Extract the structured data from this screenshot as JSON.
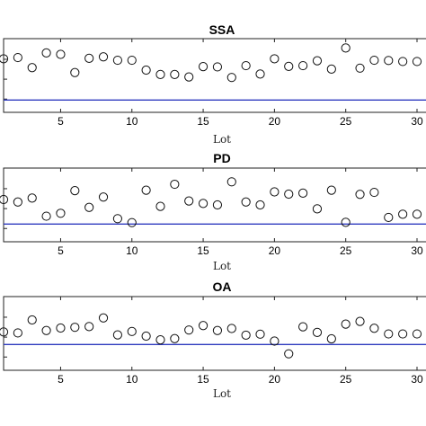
{
  "chart_data": [
    {
      "type": "scatter",
      "title": "SSA",
      "xlabel": "Lot",
      "ylabel": "",
      "xlim": [
        1,
        30
      ],
      "ylim": [
        0,
        3
      ],
      "xticks": [
        5,
        10,
        15,
        20,
        25,
        30
      ],
      "xtick_labels": [
        "5",
        "10",
        "15",
        "20",
        "25",
        "30"
      ],
      "grid": false,
      "reference_line": {
        "y": 0.5,
        "color": "#2f3bbf"
      },
      "x": [
        1,
        2,
        3,
        4,
        5,
        6,
        7,
        8,
        9,
        10,
        11,
        12,
        13,
        14,
        15,
        16,
        17,
        18,
        19,
        20,
        21,
        22,
        23,
        24,
        25,
        26,
        27,
        28,
        29,
        30
      ],
      "y": [
        2.18,
        2.23,
        1.82,
        2.42,
        2.36,
        1.62,
        2.2,
        2.26,
        2.12,
        2.12,
        1.72,
        1.54,
        1.54,
        1.44,
        1.86,
        1.85,
        1.42,
        1.9,
        1.56,
        2.18,
        1.87,
        1.9,
        2.1,
        1.76,
        2.62,
        1.8,
        2.12,
        2.11,
        2.07,
        2.07
      ]
    },
    {
      "type": "scatter",
      "title": "PD",
      "xlabel": "Lot",
      "ylabel": "",
      "xlim": [
        1,
        30
      ],
      "ylim": [
        0,
        3
      ],
      "xticks": [
        5,
        10,
        15,
        20,
        25,
        30
      ],
      "xtick_labels": [
        "5",
        "10",
        "15",
        "20",
        "25",
        "30"
      ],
      "grid": false,
      "reference_line": {
        "y": 0.72,
        "color": "#2f3bbf"
      },
      "x": [
        1,
        2,
        3,
        4,
        5,
        6,
        7,
        8,
        9,
        10,
        11,
        12,
        13,
        14,
        15,
        16,
        17,
        18,
        19,
        20,
        21,
        22,
        23,
        24,
        25,
        26,
        27,
        28,
        29,
        30
      ],
      "y": [
        1.72,
        1.62,
        1.78,
        1.04,
        1.16,
        2.08,
        1.4,
        1.82,
        0.94,
        0.78,
        2.1,
        1.44,
        2.34,
        1.66,
        1.56,
        1.5,
        2.44,
        1.62,
        1.5,
        2.03,
        1.94,
        1.98,
        1.34,
        2.1,
        0.79,
        1.93,
        2.01,
        0.99,
        1.12,
        1.12
      ]
    },
    {
      "type": "scatter",
      "title": "OA",
      "xlabel": "Lot",
      "ylabel": "",
      "xlim": [
        1,
        30
      ],
      "ylim": [
        0,
        3
      ],
      "xticks": [
        5,
        10,
        15,
        20,
        25,
        30
      ],
      "xtick_labels": [
        "5",
        "10",
        "15",
        "20",
        "25",
        "30"
      ],
      "grid": false,
      "reference_line": {
        "y": 1.05,
        "color": "#2f3bbf"
      },
      "x": [
        1,
        2,
        3,
        4,
        5,
        6,
        7,
        8,
        9,
        10,
        11,
        12,
        13,
        14,
        15,
        16,
        17,
        18,
        19,
        20,
        21,
        22,
        23,
        24,
        25,
        26,
        27,
        28,
        29,
        30
      ],
      "y": [
        1.56,
        1.52,
        2.05,
        1.62,
        1.72,
        1.75,
        1.78,
        2.13,
        1.44,
        1.58,
        1.39,
        1.24,
        1.29,
        1.64,
        1.82,
        1.62,
        1.7,
        1.43,
        1.47,
        1.19,
        0.67,
        1.77,
        1.54,
        1.28,
        1.88,
        1.99,
        1.71,
        1.48,
        1.48,
        1.48
      ]
    }
  ]
}
